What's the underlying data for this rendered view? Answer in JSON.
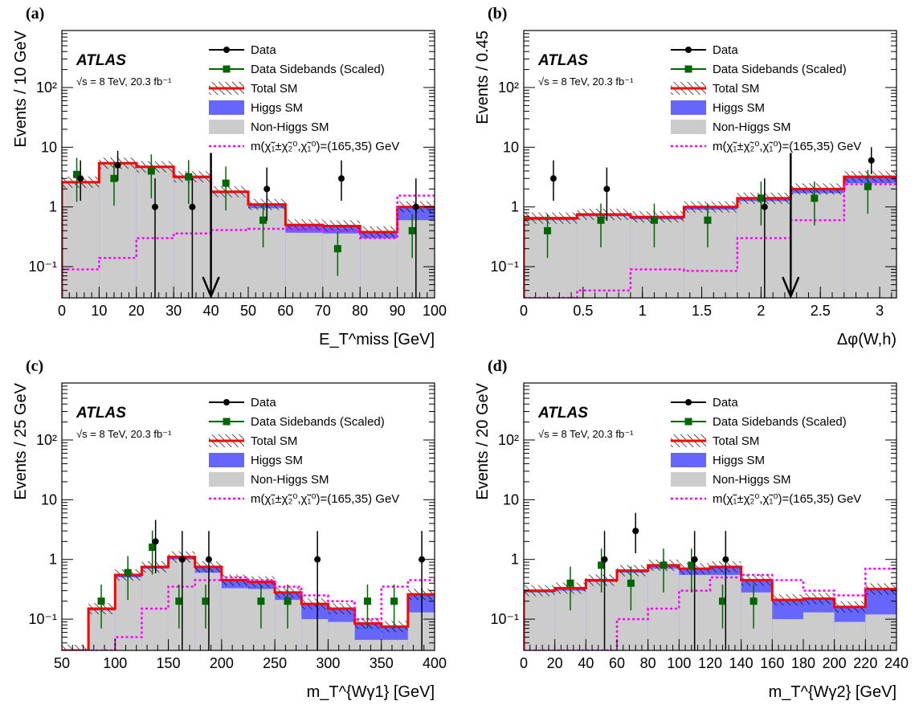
{
  "figure": {
    "legend_labels": {
      "data": "Data",
      "sidebands": "Data Sidebands (Scaled)",
      "total": "Total SM",
      "higgs": "Higgs SM",
      "nonhiggs": "Non-Higgs SM",
      "signal": "m(χ̃₁±χ̃₂⁰,χ̃₁⁰)=(165,35) GeV"
    },
    "atlas_label": "ATLAS",
    "energy_label": "√s = 8 TeV, 20.3 fb⁻¹",
    "colors": {
      "total": "#ff0000",
      "higgs": "#6666ff",
      "nonhiggs": "#cccccc",
      "signal": "#ff00ff",
      "data": "#000000",
      "sidebands": "#006600"
    }
  },
  "chart_data": [
    {
      "panel": "(a)",
      "type": "bar",
      "xlabel": "E_T^miss [GeV]",
      "ylabel": "Events / 10 GeV",
      "xlim": [
        0,
        100
      ],
      "ylim": [
        0.03,
        900
      ],
      "log_y": true,
      "xticks": [
        0,
        10,
        20,
        30,
        40,
        50,
        60,
        70,
        80,
        90,
        100
      ],
      "cut_arrow_x": 40,
      "bin_edges": [
        0,
        10,
        20,
        30,
        40,
        50,
        60,
        70,
        80,
        90,
        100
      ],
      "total_sm": [
        2.6,
        5.4,
        4.7,
        3.2,
        1.8,
        1.1,
        0.5,
        0.48,
        0.38,
        1.0
      ],
      "nonhiggs_sm": [
        2.5,
        5.2,
        4.5,
        3.0,
        1.7,
        0.95,
        0.37,
        0.36,
        0.3,
        0.6
      ],
      "signal": [
        0.09,
        0.14,
        0.3,
        0.36,
        0.41,
        0.43,
        0.42,
        0.4,
        0.3,
        1.55
      ],
      "data": [
        {
          "x": 5,
          "y": 3
        },
        {
          "x": 15,
          "y": 5
        },
        {
          "x": 25,
          "y": 1
        },
        {
          "x": 35,
          "y": 1
        },
        {
          "x": 55,
          "y": 2
        },
        {
          "x": 75,
          "y": 3
        },
        {
          "x": 95,
          "y": 1
        }
      ],
      "sidebands": [
        {
          "x": 4,
          "y": 3.5
        },
        {
          "x": 14,
          "y": 3
        },
        {
          "x": 24,
          "y": 4
        },
        {
          "x": 34,
          "y": 3.2
        },
        {
          "x": 44,
          "y": 2.5
        },
        {
          "x": 54,
          "y": 0.6
        },
        {
          "x": 74,
          "y": 0.2
        },
        {
          "x": 94,
          "y": 0.4
        }
      ]
    },
    {
      "panel": "(b)",
      "type": "bar",
      "xlabel": "Δφ(W,h)",
      "ylabel": "Events / 0.45",
      "xlim": [
        0,
        3.1416
      ],
      "ylim": [
        0.03,
        900
      ],
      "log_y": true,
      "xticks": [
        0,
        0.5,
        1,
        1.5,
        2,
        2.5,
        3
      ],
      "cut_arrow_x": 2.25,
      "bin_edges": [
        0,
        0.45,
        0.9,
        1.35,
        1.8,
        2.25,
        2.7,
        3.1416
      ],
      "total_sm": [
        0.65,
        0.75,
        0.68,
        1.0,
        1.4,
        2.0,
        3.2
      ],
      "nonhiggs_sm": [
        0.6,
        0.7,
        0.62,
        0.9,
        1.25,
        1.7,
        2.5
      ],
      "signal": [
        0.03,
        0.04,
        0.09,
        0.085,
        0.3,
        0.6,
        2.4
      ],
      "data": [
        {
          "x": 0.25,
          "y": 3
        },
        {
          "x": 0.7,
          "y": 2
        },
        {
          "x": 2.03,
          "y": 1
        },
        {
          "x": 2.93,
          "y": 6
        }
      ],
      "sidebands": [
        {
          "x": 0.2,
          "y": 0.4
        },
        {
          "x": 0.65,
          "y": 0.6
        },
        {
          "x": 1.1,
          "y": 0.6
        },
        {
          "x": 1.55,
          "y": 0.6
        },
        {
          "x": 2.0,
          "y": 1.4
        },
        {
          "x": 2.45,
          "y": 1.4
        },
        {
          "x": 2.9,
          "y": 2.2
        }
      ]
    },
    {
      "panel": "(c)",
      "type": "bar",
      "xlabel": "m_T^{Wγ1} [GeV]",
      "ylabel": "Events / 25 GeV",
      "xlim": [
        50,
        400
      ],
      "ylim": [
        0.03,
        900
      ],
      "log_y": true,
      "xticks": [
        50,
        100,
        150,
        200,
        250,
        300,
        350,
        400
      ],
      "bin_edges": [
        50,
        75,
        100,
        125,
        150,
        175,
        200,
        225,
        250,
        275,
        300,
        325,
        350,
        375,
        400
      ],
      "total_sm": [
        0.03,
        0.15,
        0.55,
        0.75,
        1.1,
        0.75,
        0.45,
        0.42,
        0.28,
        0.18,
        0.15,
        0.085,
        0.075,
        0.26
      ],
      "nonhiggs_sm": [
        0.03,
        0.14,
        0.5,
        0.7,
        1.0,
        0.6,
        0.33,
        0.32,
        0.21,
        0.1,
        0.09,
        0.045,
        0.045,
        0.13
      ],
      "signal": [
        0.03,
        0.03,
        0.05,
        0.15,
        0.35,
        0.45,
        0.5,
        0.45,
        0.35,
        0.25,
        0.2,
        0.1,
        0.35,
        0.45
      ],
      "data": [
        {
          "x": 138,
          "y": 2
        },
        {
          "x": 163,
          "y": 1
        },
        {
          "x": 188,
          "y": 1
        },
        {
          "x": 290,
          "y": 1
        },
        {
          "x": 388,
          "y": 1
        }
      ],
      "sidebands": [
        {
          "x": 87,
          "y": 0.2
        },
        {
          "x": 112,
          "y": 0.6
        },
        {
          "x": 135,
          "y": 1.6
        },
        {
          "x": 160,
          "y": 0.2
        },
        {
          "x": 185,
          "y": 0.2
        },
        {
          "x": 237,
          "y": 0.2
        },
        {
          "x": 262,
          "y": 0.2
        },
        {
          "x": 337,
          "y": 0.2
        },
        {
          "x": 362,
          "y": 0.2
        }
      ]
    },
    {
      "panel": "(d)",
      "type": "bar",
      "xlabel": "m_T^{Wγ2} [GeV]",
      "ylabel": "Events / 20 GeV",
      "xlim": [
        0,
        240
      ],
      "ylim": [
        0.03,
        900
      ],
      "log_y": true,
      "xticks": [
        0,
        20,
        40,
        60,
        80,
        100,
        120,
        140,
        160,
        180,
        200,
        220,
        240
      ],
      "bin_edges": [
        0,
        20,
        40,
        60,
        80,
        100,
        120,
        140,
        160,
        180,
        200,
        220,
        240
      ],
      "total_sm": [
        0.3,
        0.33,
        0.45,
        0.65,
        0.8,
        0.7,
        0.75,
        0.45,
        0.21,
        0.22,
        0.16,
        0.32
      ],
      "nonhiggs_sm": [
        0.28,
        0.3,
        0.42,
        0.6,
        0.7,
        0.55,
        0.55,
        0.28,
        0.1,
        0.13,
        0.09,
        0.12
      ],
      "signal": [
        0.03,
        0.03,
        0.03,
        0.1,
        0.15,
        0.3,
        0.5,
        0.55,
        0.45,
        0.3,
        0.25,
        0.7
      ],
      "data": [
        {
          "x": 52,
          "y": 1
        },
        {
          "x": 72,
          "y": 3
        },
        {
          "x": 110,
          "y": 1
        },
        {
          "x": 130,
          "y": 1
        }
      ],
      "sidebands": [
        {
          "x": 30,
          "y": 0.4
        },
        {
          "x": 50,
          "y": 0.8
        },
        {
          "x": 69,
          "y": 0.4
        },
        {
          "x": 90,
          "y": 0.8
        },
        {
          "x": 108,
          "y": 0.8
        },
        {
          "x": 128,
          "y": 0.2
        },
        {
          "x": 148,
          "y": 0.2
        }
      ]
    }
  ]
}
